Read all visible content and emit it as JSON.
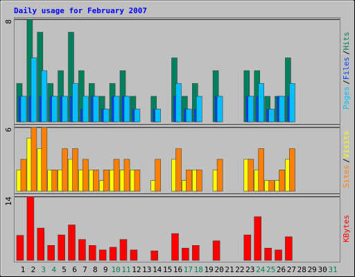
{
  "chart_data": {
    "type": "bar",
    "title": "Daily usage for February 2007",
    "title_color": "#0000ff",
    "separator": "/",
    "categories": [
      "1",
      "2",
      "3",
      "4",
      "5",
      "6",
      "7",
      "8",
      "9",
      "10",
      "11",
      "12",
      "13",
      "14",
      "15",
      "16",
      "17",
      "18",
      "19",
      "20",
      "21",
      "22",
      "23",
      "24",
      "25",
      "26",
      "27",
      "28",
      "29",
      "30",
      "31"
    ],
    "label_colors": [
      "#000000",
      "#000000",
      "#00805c",
      "#00805c",
      "#000000",
      "#000000",
      "#000000",
      "#000000",
      "#000000",
      "#00805c",
      "#00805c",
      "#000000",
      "#000000",
      "#000000",
      "#000000",
      "#000000",
      "#00805c",
      "#00805c",
      "#000000",
      "#000000",
      "#000000",
      "#000000",
      "#000000",
      "#00805c",
      "#00805c",
      "#000000",
      "#000000",
      "#000000",
      "#000000",
      "#000000",
      "#00805c"
    ],
    "panels": [
      {
        "ylim": [
          0,
          8
        ],
        "yticks": [
          8
        ],
        "series": [
          {
            "name": "Hits",
            "color": "#00805c",
            "values": [
              3,
              8,
              7,
              3,
              4,
              7,
              4,
              3,
              2,
              3,
              4,
              2,
              0,
              2,
              0,
              5,
              2,
              3,
              0,
              4,
              0,
              0,
              4,
              4,
              2,
              2,
              5,
              0,
              0,
              0,
              0
            ]
          },
          {
            "name": "Files",
            "color": "#0040ff",
            "values": [
              2,
              2,
              2,
              2,
              2,
              2,
              1,
              2,
              1,
              2,
              2,
              1,
              0,
              1,
              0,
              2,
              1,
              1,
              0,
              2,
              0,
              0,
              2,
              2,
              1,
              2,
              2,
              0,
              0,
              0,
              0
            ]
          },
          {
            "name": "Pages",
            "color": "#00c0ff",
            "values": [
              2,
              5,
              4,
              2,
              2,
              3,
              2,
              2,
              1,
              2,
              2,
              1,
              0,
              1,
              0,
              3,
              1,
              2,
              0,
              2,
              0,
              0,
              2,
              3,
              1,
              2,
              3,
              0,
              0,
              0,
              0
            ]
          }
        ]
      },
      {
        "ylim": [
          0,
          6
        ],
        "yticks": [
          6
        ],
        "series": [
          {
            "name": "Visits",
            "color": "#ffff00",
            "values": [
              2,
              5,
              4,
              2,
              2,
              3,
              2,
              2,
              1,
              2,
              2,
              2,
              0,
              1,
              0,
              3,
              1,
              2,
              0,
              2,
              0,
              0,
              3,
              2,
              1,
              1,
              3,
              0,
              0,
              0,
              0
            ]
          },
          {
            "name": "Sites",
            "color": "#ff8000",
            "values": [
              3,
              6,
              6,
              2,
              4,
              4,
              3,
              2,
              2,
              3,
              3,
              2,
              0,
              3,
              0,
              4,
              2,
              2,
              0,
              3,
              0,
              0,
              3,
              4,
              1,
              2,
              4,
              0,
              0,
              0,
              0
            ]
          }
        ]
      },
      {
        "ylim": [
          0,
          14
        ],
        "yticks": [
          14
        ],
        "series": [
          {
            "name": "KBytes",
            "color": "#ff0000",
            "values": [
              5.5,
              14,
              7.1,
              3.3,
              5.6,
              7.8,
              4.6,
              3.3,
              2.3,
              2.9,
              4.6,
              2.3,
              0,
              2.1,
              0,
              5.9,
              2.7,
              3.3,
              0,
              4.3,
              0,
              0,
              5.6,
              9.6,
              2.7,
              2.3,
              5.2,
              0,
              0,
              0,
              0
            ]
          }
        ]
      }
    ]
  }
}
